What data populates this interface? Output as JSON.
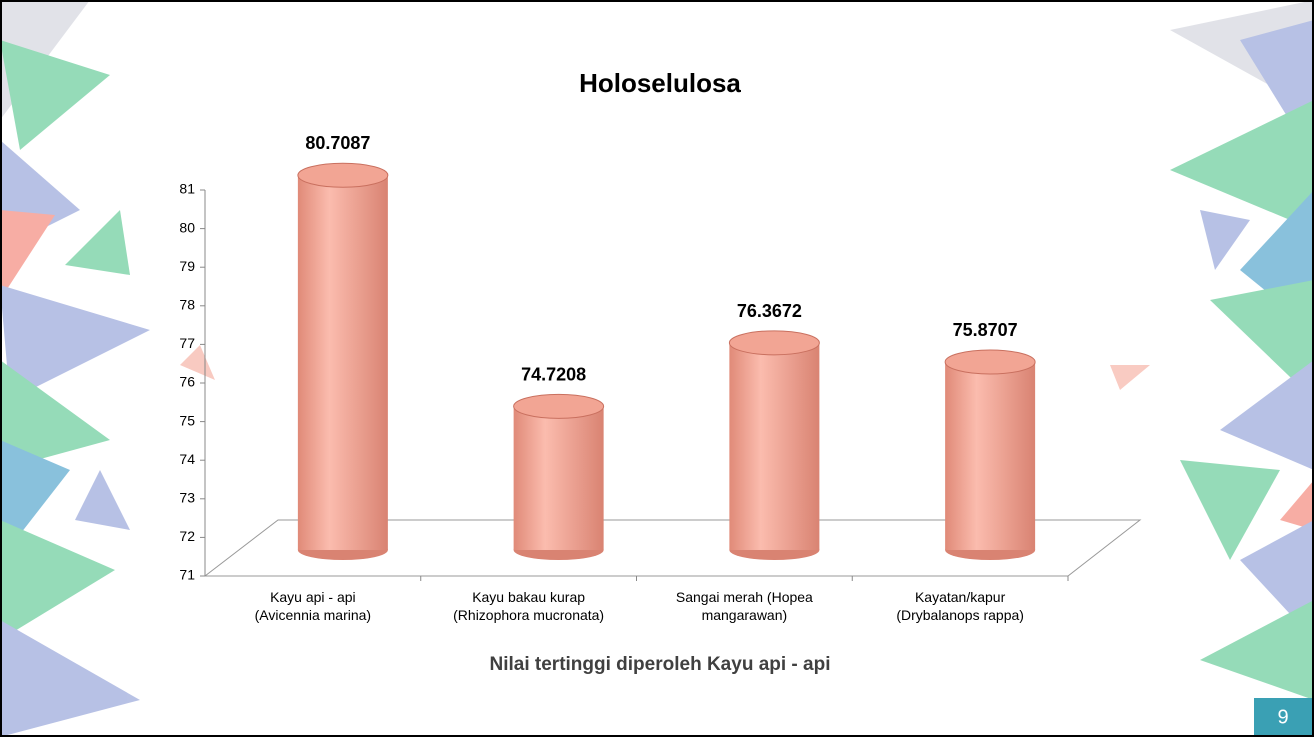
{
  "chart_data": {
    "type": "bar",
    "title": "Holoselulosa",
    "categories": [
      [
        "Kayu api - api",
        "(Avicennia marina)"
      ],
      [
        "Kayu bakau kurap",
        "(Rhizophora mucronata)"
      ],
      [
        "Sangai merah (Hopea",
        "mangarawan)"
      ],
      [
        "Kayatan/kapur",
        "(Drybalanops rappa)"
      ]
    ],
    "values": [
      80.7087,
      74.7208,
      76.3672,
      75.8707
    ],
    "color": "#f2a594",
    "ylim": [
      71,
      81
    ],
    "yticks": [
      71,
      72,
      73,
      74,
      75,
      76,
      77,
      78,
      79,
      80,
      81
    ],
    "annotation": "Nilai tertinggi diperoleh Kayu api - api"
  },
  "slide": {
    "page_number": "9"
  }
}
